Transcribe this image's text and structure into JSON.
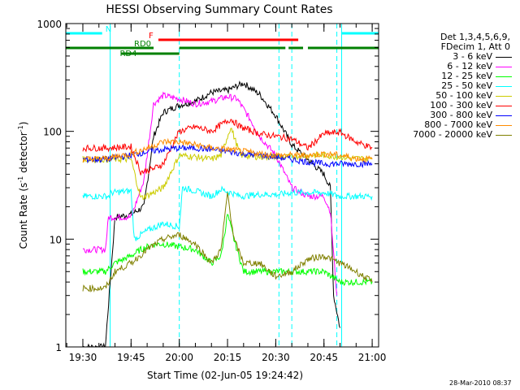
{
  "chart_data": {
    "type": "line",
    "title": "HESSI Observing Summary Count Rates",
    "xlabel": "Start Time (02-Jun-05 19:24:42)",
    "ylabel_main": "Count Rate (s",
    "ylabel_sup": "-1",
    "ylabel_tail": " detector",
    "ylabel_end": ")",
    "y_scale": "log",
    "ylim": [
      1,
      1000
    ],
    "xlim": [
      "19:24:42",
      "21:02:00"
    ],
    "y_ticks": [
      "1",
      "10",
      "100",
      "1000"
    ],
    "x_ticks": [
      "19:30",
      "19:45",
      "20:00",
      "20:15",
      "20:30",
      "20:45",
      "21:00"
    ],
    "legend_position": "right",
    "legend_header": [
      "Det 1,3,4,5,6,9,",
      "FDecim 1, Att 0"
    ],
    "timestamp": "28-Mar-2010 08:37",
    "flags": [
      {
        "label": "N",
        "color": "#00ffff",
        "segments": [
          [
            "19:24:42",
            "19:36:00"
          ],
          [
            "20:50:30",
            "21:02:00"
          ]
        ]
      },
      {
        "label": "F",
        "color": "#ff0000",
        "segments": [
          [
            "19:53:30",
            "20:37:00"
          ]
        ]
      },
      {
        "label": "RD0",
        "color": "#008000",
        "segments": [
          [
            "19:24:42",
            "19:52:00"
          ],
          [
            "20:00:00",
            "20:33:00"
          ],
          [
            "20:34:00",
            "20:38:30"
          ],
          [
            "20:40:00",
            "21:02:00"
          ]
        ]
      },
      {
        "label": "RD4",
        "color": "#008000",
        "segments": [
          [
            "19:42:00",
            "20:00:00"
          ]
        ]
      }
    ],
    "night_boundaries": [
      "19:38:30",
      "20:50:30"
    ],
    "saa_boundaries": [
      "19:24:42",
      "20:00:00",
      "20:31:00",
      "20:35:00",
      "20:49:00",
      "21:02:00"
    ],
    "series": [
      {
        "name": "3 - 6 keV",
        "color": "#000000",
        "x": [
          "19:30",
          "19:37",
          "19:38",
          "19:40",
          "19:45",
          "19:49",
          "19:52",
          "19:55",
          "20:00",
          "20:05",
          "20:10",
          "20:15",
          "20:20",
          "20:25",
          "20:30",
          "20:35",
          "20:40",
          "20:45",
          "20:47",
          "20:48",
          "20:50"
        ],
        "y": [
          1.0,
          1.0,
          2.5,
          16,
          17,
          20,
          90,
          150,
          175,
          190,
          230,
          240,
          280,
          220,
          140,
          75,
          55,
          40,
          30,
          3,
          1.5
        ]
      },
      {
        "name": "6 - 12 keV",
        "color": "#ff00ff",
        "x": [
          "19:30",
          "19:37",
          "19:38",
          "19:45",
          "19:49",
          "19:52",
          "19:55",
          "20:00",
          "20:05",
          "20:10",
          "20:15",
          "20:18",
          "20:22",
          "20:25",
          "20:30",
          "20:35",
          "20:40",
          "20:45",
          "20:47",
          "20:49"
        ],
        "y": [
          8,
          8,
          16,
          16,
          35,
          180,
          215,
          200,
          180,
          190,
          210,
          200,
          130,
          90,
          60,
          30,
          25,
          25,
          18,
          3
        ]
      },
      {
        "name": "12 - 25 keV",
        "color": "#00ff00",
        "x": [
          "19:30",
          "19:37",
          "19:40",
          "19:45",
          "19:48",
          "19:52",
          "19:55",
          "20:00",
          "20:05",
          "20:10",
          "20:13",
          "20:15",
          "20:17",
          "20:20",
          "20:25",
          "20:30",
          "20:35",
          "20:40",
          "20:45",
          "20:50",
          "20:55",
          "21:00"
        ],
        "y": [
          5,
          5,
          6,
          7,
          8,
          9,
          9,
          8.5,
          8,
          6,
          7,
          17,
          10,
          5,
          5,
          5,
          5,
          5,
          5,
          4,
          4,
          4
        ]
      },
      {
        "name": "25 - 50 keV",
        "color": "#00ffff",
        "x": [
          "19:30",
          "19:38",
          "19:39",
          "19:45",
          "19:46",
          "19:50",
          "19:55",
          "20:00",
          "20:01",
          "20:05",
          "20:10",
          "20:13",
          "20:16",
          "20:19",
          "20:25",
          "20:30",
          "20:31",
          "20:35",
          "20:40",
          "20:45",
          "20:50",
          "20:55",
          "21:00"
        ],
        "y": [
          25,
          25,
          27,
          28,
          10,
          12,
          14,
          13,
          30,
          28,
          25,
          29,
          27,
          25,
          26,
          26,
          26,
          27,
          27,
          27,
          25,
          25,
          25
        ]
      },
      {
        "name": "50 - 100 keV",
        "color": "#cccc00",
        "x": [
          "19:30",
          "19:37",
          "19:45",
          "19:48",
          "19:52",
          "19:55",
          "20:00",
          "20:05",
          "20:10",
          "20:13",
          "20:16",
          "20:19",
          "20:25",
          "20:30",
          "20:35",
          "20:40",
          "20:45",
          "20:50",
          "20:55",
          "21:00"
        ],
        "y": [
          55,
          55,
          55,
          24,
          27,
          30,
          60,
          58,
          55,
          60,
          110,
          60,
          58,
          58,
          58,
          60,
          60,
          58,
          56,
          56
        ]
      },
      {
        "name": "100 - 300 keV",
        "color": "#ff0000",
        "x": [
          "19:30",
          "19:37",
          "19:45",
          "19:48",
          "19:52",
          "19:55",
          "20:00",
          "20:05",
          "20:10",
          "20:13",
          "20:16",
          "20:19",
          "20:25",
          "20:30",
          "20:35",
          "20:40",
          "20:45",
          "20:50",
          "20:55",
          "21:00"
        ],
        "y": [
          70,
          70,
          72,
          42,
          45,
          50,
          100,
          110,
          100,
          115,
          130,
          110,
          95,
          90,
          85,
          70,
          95,
          98,
          80,
          70
        ]
      },
      {
        "name": "300 - 800 keV",
        "color": "#0000ff",
        "x": [
          "19:30",
          "19:37",
          "19:45",
          "19:50",
          "19:55",
          "20:00",
          "20:05",
          "20:10",
          "20:15",
          "20:20",
          "20:25",
          "20:30",
          "20:35",
          "20:40",
          "20:45",
          "20:50",
          "20:55",
          "21:00"
        ],
        "y": [
          55,
          55,
          60,
          65,
          68,
          70,
          70,
          68,
          65,
          62,
          60,
          58,
          55,
          52,
          50,
          50,
          50,
          50
        ]
      },
      {
        "name": "800 - 7000 keV",
        "color": "#ff8c00",
        "x": [
          "19:30",
          "19:37",
          "19:45",
          "19:50",
          "19:55",
          "20:00",
          "20:05",
          "20:10",
          "20:15",
          "20:20",
          "20:25",
          "20:30",
          "20:35",
          "20:40",
          "20:45",
          "20:50",
          "20:55",
          "21:00"
        ],
        "y": [
          55,
          56,
          62,
          70,
          80,
          80,
          75,
          70,
          68,
          65,
          62,
          60,
          60,
          60,
          62,
          60,
          56,
          55
        ]
      },
      {
        "name": "7000 - 20000 keV",
        "color": "#808000",
        "x": [
          "19:30",
          "19:37",
          "19:40",
          "19:45",
          "19:50",
          "19:55",
          "20:00",
          "20:05",
          "20:10",
          "20:13",
          "20:15",
          "20:17",
          "20:20",
          "20:25",
          "20:30",
          "20:35",
          "20:40",
          "20:45",
          "20:50",
          "20:55",
          "21:00"
        ],
        "y": [
          3.5,
          3.5,
          5,
          6,
          8,
          10,
          11,
          9,
          6,
          8,
          27,
          10,
          6,
          6,
          4.5,
          5,
          6.5,
          7,
          6,
          5,
          4
        ]
      }
    ]
  }
}
